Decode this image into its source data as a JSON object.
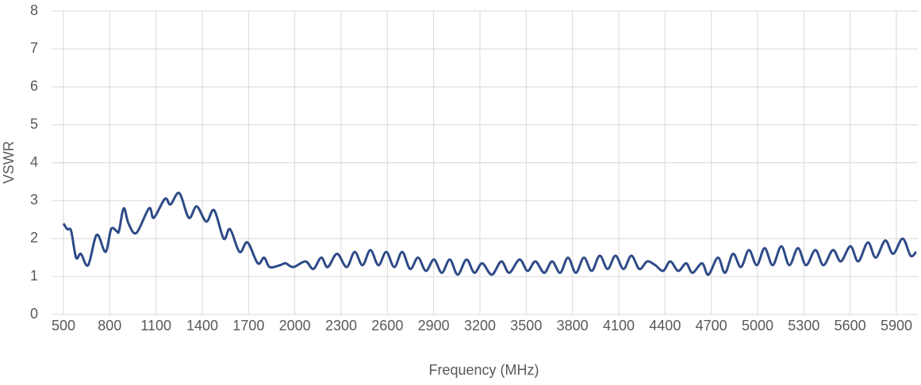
{
  "chart_data": {
    "type": "line",
    "x_label": "Frequency (MHz)",
    "y_label": "VSWR",
    "x": [
      500,
      525,
      550,
      582,
      613,
      660,
      716,
      773,
      809,
      845,
      860,
      891,
      922,
      973,
      1055,
      1086,
      1158,
      1194,
      1251,
      1313,
      1364,
      1426,
      1477,
      1539,
      1580,
      1642,
      1693,
      1760,
      1801,
      1837,
      1904,
      1940,
      1991,
      2069,
      2120,
      2171,
      2213,
      2274,
      2336,
      2388,
      2439,
      2490,
      2542,
      2593,
      2645,
      2696,
      2748,
      2799,
      2850,
      2902,
      2953,
      3005,
      3056,
      3113,
      3164,
      3215,
      3277,
      3339,
      3390,
      3457,
      3509,
      3560,
      3617,
      3668,
      3720,
      3771,
      3822,
      3874,
      3925,
      3977,
      4028,
      4079,
      4131,
      4182,
      4234,
      4285,
      4337,
      4388,
      4434,
      4486,
      4537,
      4578,
      4640,
      4681,
      4743,
      4789,
      4841,
      4892,
      4944,
      4995,
      5046,
      5098,
      5154,
      5206,
      5262,
      5314,
      5375,
      5427,
      5489,
      5540,
      5602,
      5653,
      5715,
      5766,
      5828,
      5879,
      5941,
      5992,
      6028
    ],
    "series": [
      {
        "name": "VSWR",
        "color": "#2e4a87",
        "values": [
          2.4,
          2.25,
          2.2,
          1.5,
          1.6,
          1.3,
          2.1,
          1.65,
          2.25,
          2.2,
          2.2,
          2.8,
          2.4,
          2.15,
          2.8,
          2.55,
          3.05,
          2.9,
          3.2,
          2.55,
          2.85,
          2.45,
          2.75,
          2.0,
          2.25,
          1.65,
          1.9,
          1.35,
          1.5,
          1.25,
          1.3,
          1.35,
          1.25,
          1.4,
          1.2,
          1.5,
          1.25,
          1.6,
          1.25,
          1.65,
          1.3,
          1.7,
          1.3,
          1.65,
          1.25,
          1.65,
          1.2,
          1.5,
          1.15,
          1.45,
          1.1,
          1.45,
          1.05,
          1.45,
          1.1,
          1.35,
          1.05,
          1.4,
          1.1,
          1.45,
          1.15,
          1.4,
          1.1,
          1.4,
          1.1,
          1.5,
          1.1,
          1.5,
          1.15,
          1.55,
          1.2,
          1.55,
          1.2,
          1.55,
          1.2,
          1.4,
          1.3,
          1.15,
          1.4,
          1.15,
          1.35,
          1.1,
          1.35,
          1.05,
          1.5,
          1.1,
          1.6,
          1.25,
          1.7,
          1.3,
          1.75,
          1.3,
          1.8,
          1.3,
          1.75,
          1.3,
          1.7,
          1.3,
          1.7,
          1.4,
          1.8,
          1.4,
          1.9,
          1.5,
          1.95,
          1.6,
          2.0,
          1.55,
          1.65
        ]
      }
    ],
    "xlim": [
      423,
      6039
    ],
    "xticks": [
      500,
      800,
      1100,
      1400,
      1700,
      2000,
      2300,
      2600,
      2900,
      3200,
      3500,
      3800,
      4100,
      4400,
      4700,
      5000,
      5300,
      5600,
      5900
    ],
    "ylim": [
      0,
      8
    ],
    "yticks": [
      0,
      1,
      2,
      3,
      4,
      5,
      6,
      7,
      8
    ],
    "grid": true
  }
}
